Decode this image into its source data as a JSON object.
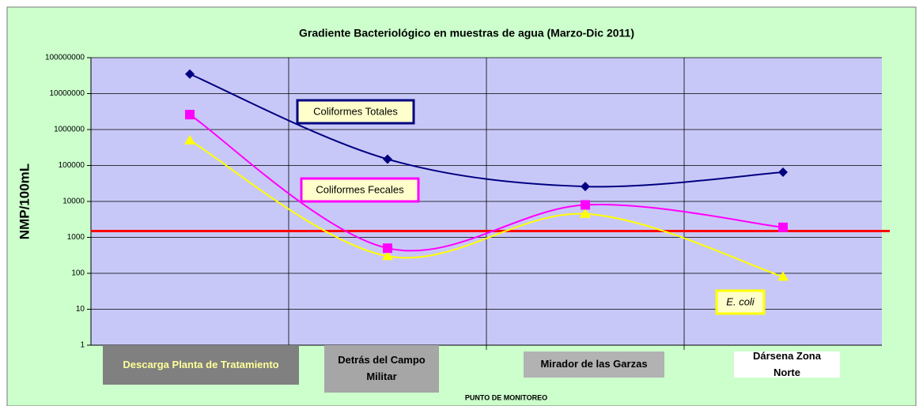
{
  "chart_data": {
    "type": "line",
    "title": "Gradiente Bacteriológico en muestras de agua (Marzo-Dic  2011)",
    "x_label": "PUNTO DE MONITOREO",
    "y_label": "NMP/100mL",
    "categories": [
      "Descarga Planta de Tratamiento",
      "Detrás del Campo Militar",
      "Mirador de las Garzas",
      "Dársena Zona Norte"
    ],
    "series": [
      {
        "name": "Coliformes Totales",
        "color": "#000080",
        "marker": "diamond",
        "values": [
          35000000,
          150000,
          26000,
          65000
        ]
      },
      {
        "name": "Coliformes Fecales",
        "color": "#ff00ff",
        "marker": "square",
        "values": [
          2600000,
          500,
          8000,
          1900
        ]
      },
      {
        "name": "E. coli",
        "color": "#ffff00",
        "marker": "triangle",
        "values": [
          500000,
          300,
          4500,
          80
        ]
      }
    ],
    "reference_line": {
      "value": 1500,
      "color": "#ff0000"
    },
    "log_y": true,
    "ylim": [
      1,
      100000000
    ],
    "yticks": [
      1,
      10,
      100,
      1000,
      10000,
      100000,
      1000000,
      10000000,
      100000000
    ],
    "grid": true
  }
}
